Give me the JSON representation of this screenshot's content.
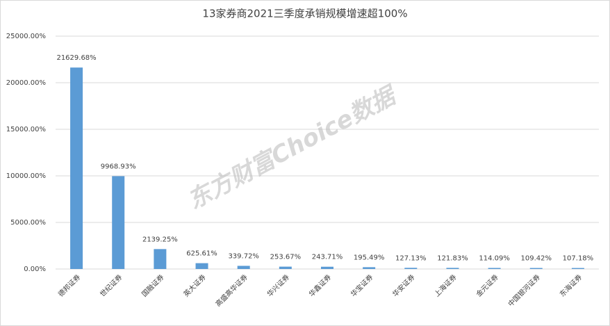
{
  "chart_data": {
    "type": "bar",
    "title": "13家券商2021三季度承销规模增速超100%",
    "watermark": "东方财富Choice数据",
    "categories": [
      "德邦证券",
      "世纪证券",
      "国融证券",
      "英大证券",
      "高盛高华证券",
      "华兴证券",
      "华鑫证券",
      "华宝证券",
      "华安证券",
      "上海证券",
      "金元证券",
      "中国银河证券",
      "东海证券"
    ],
    "values": [
      21629.68,
      9968.93,
      2139.25,
      625.61,
      339.72,
      253.67,
      243.71,
      195.49,
      127.13,
      121.83,
      114.09,
      109.42,
      107.18
    ],
    "value_labels": [
      "21629.68%",
      "9968.93%",
      "2139.25%",
      "625.61%",
      "339.72%",
      "253.67%",
      "243.71%",
      "195.49%",
      "127.13%",
      "121.83%",
      "114.09%",
      "109.42%",
      "107.18%"
    ],
    "color": "#5b9bd5",
    "ylim": [
      0,
      25000
    ],
    "yticks": [
      {
        "value": 0,
        "label": "0.00%"
      },
      {
        "value": 5000,
        "label": "5000.00%"
      },
      {
        "value": 10000,
        "label": "10000.00%"
      },
      {
        "value": 15000,
        "label": "15000.00%"
      },
      {
        "value": 20000,
        "label": "20000.00%"
      },
      {
        "value": 25000,
        "label": "25000.00%"
      }
    ],
    "grid": true
  }
}
